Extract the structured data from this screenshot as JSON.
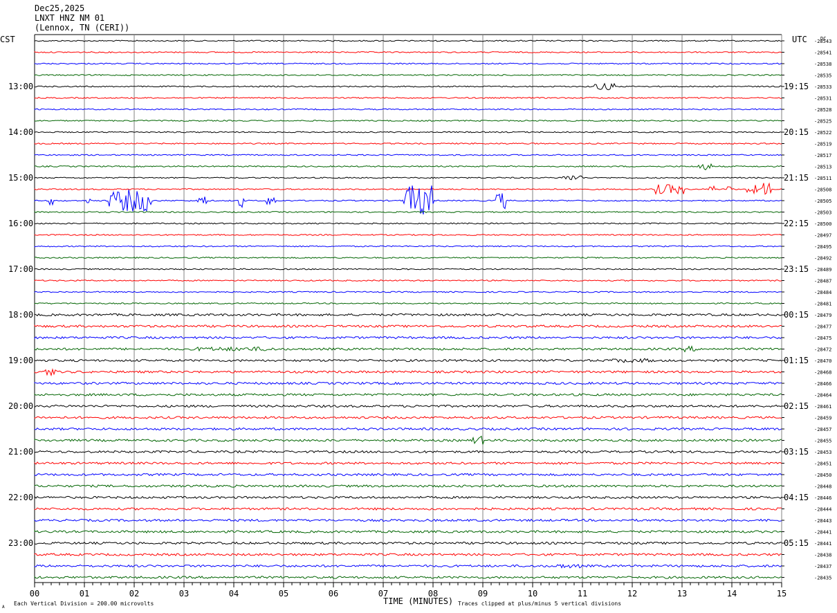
{
  "header": {
    "date": "Dec25,2025",
    "station": "LNXT HNZ NM 01",
    "location": "(Lennox, TN (CERI))"
  },
  "left_tz": "CST",
  "right_tz": "UTC",
  "dc_label": "DC",
  "footer": {
    "scale_note": "Each Vertical Division =  200.00 microvolts",
    "xlabel": "TIME (MINUTES)",
    "clip_note": "Traces clipped at plus/minus 5 vertical divisions",
    "corner_mark": "A"
  },
  "colors": {
    "black": "#000000",
    "red": "#ff0000",
    "blue": "#0000ff",
    "green": "#006400",
    "grid": "#808080"
  },
  "chart_data": {
    "type": "line",
    "title": "LNXT HNZ NM 01",
    "xlabel": "TIME (MINUTES)",
    "ylabel": "",
    "xlim": [
      0,
      15
    ],
    "x_ticks": [
      "00",
      "01",
      "02",
      "03",
      "04",
      "05",
      "06",
      "07",
      "08",
      "09",
      "10",
      "11",
      "12",
      "13",
      "14",
      "15"
    ],
    "trace_color_cycle": [
      "black",
      "red",
      "blue",
      "green"
    ],
    "left_hour_labels": [
      "13:00",
      "14:00",
      "15:00",
      "16:00",
      "17:00",
      "18:00",
      "19:00",
      "20:00",
      "21:00",
      "22:00",
      "23:00"
    ],
    "right_hour_labels": [
      "19:15",
      "20:15",
      "21:15",
      "22:15",
      "23:15",
      "00:15",
      "01:15",
      "02:15",
      "03:15",
      "04:15",
      "05:15"
    ],
    "dc_offsets": [
      "-28543",
      "-28541",
      "-28538",
      "-28535",
      "-28533",
      "-28531",
      "-28528",
      "-28525",
      "-28522",
      "-28519",
      "-28517",
      "-28513",
      "-28511",
      "-28508",
      "-28505",
      "-28503",
      "-28500",
      "-28497",
      "-28495",
      "-28492",
      "-28489",
      "-28487",
      "-28484",
      "-28481",
      "-28479",
      "-28477",
      "-28475",
      "-28472",
      "-28470",
      "-28468",
      "-28466",
      "-28464",
      "-28461",
      "-28459",
      "-28457",
      "-28455",
      "-28453",
      "-28451",
      "-28450",
      "-28448",
      "-28446",
      "-28444",
      "-28443",
      "-28441",
      "-28441",
      "-28438",
      "-28437",
      "-28435"
    ]
  }
}
